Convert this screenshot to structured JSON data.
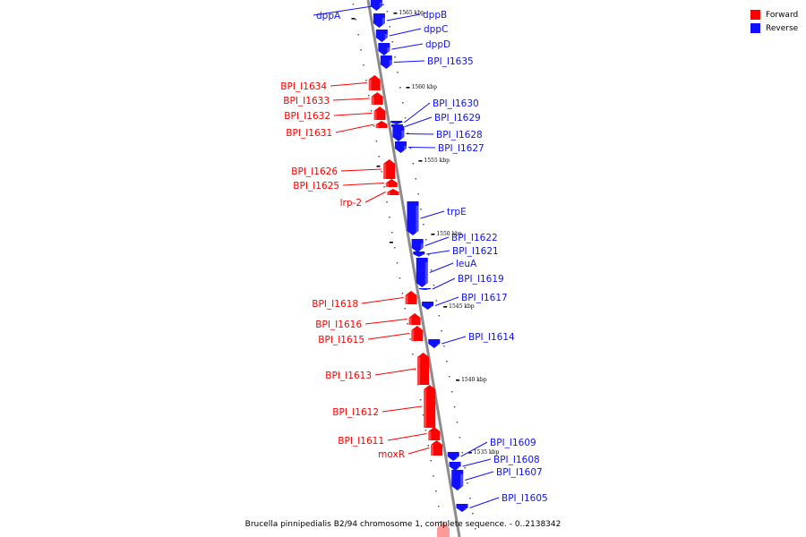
{
  "title": "Brucella pinnipedialis B2/94 chromosome 1, complete sequence. - 0..2138342",
  "legend": [
    {
      "label": "Forward",
      "color": "#ff0000"
    },
    {
      "label": "Reverse",
      "color": "#1010ff"
    }
  ],
  "colors": {
    "forward": "#ff0000",
    "reverse": "#1010ff",
    "backbone": "#8c8c8c",
    "faded_forward": "#ff9a9a"
  },
  "ticks": [
    {
      "label": "1565 kbp"
    },
    {
      "label": "1560 kbp"
    },
    {
      "label": "1555 kbp"
    },
    {
      "label": "1550 kbp"
    },
    {
      "label": "1545 kbp"
    },
    {
      "label": "1540 kbp"
    },
    {
      "label": "1535 kbp"
    }
  ],
  "genes": [
    {
      "name": "dppA",
      "strand": "reverse"
    },
    {
      "name": "dppB",
      "strand": "reverse"
    },
    {
      "name": "dppC",
      "strand": "reverse"
    },
    {
      "name": "dppD",
      "strand": "reverse"
    },
    {
      "name": "BPI_I1635",
      "strand": "reverse"
    },
    {
      "name": "BPI_I1634",
      "strand": "forward"
    },
    {
      "name": "BPI_I1633",
      "strand": "forward"
    },
    {
      "name": "BPI_I1632",
      "strand": "forward"
    },
    {
      "name": "BPI_I1631",
      "strand": "forward"
    },
    {
      "name": "BPI_I1630",
      "strand": "reverse"
    },
    {
      "name": "BPI_I1629",
      "strand": "reverse"
    },
    {
      "name": "BPI_I1628",
      "strand": "reverse"
    },
    {
      "name": "BPI_I1627",
      "strand": "reverse"
    },
    {
      "name": "BPI_I1626",
      "strand": "forward"
    },
    {
      "name": "BPI_I1625",
      "strand": "forward"
    },
    {
      "name": "lrp-2",
      "strand": "forward"
    },
    {
      "name": "trpE",
      "strand": "reverse"
    },
    {
      "name": "BPI_I1622",
      "strand": "reverse"
    },
    {
      "name": "BPI_I1621",
      "strand": "reverse"
    },
    {
      "name": "leuA",
      "strand": "reverse"
    },
    {
      "name": "BPI_I1619",
      "strand": "reverse"
    },
    {
      "name": "BPI_I1618",
      "strand": "forward"
    },
    {
      "name": "BPI_I1617",
      "strand": "reverse"
    },
    {
      "name": "BPI_I1616",
      "strand": "forward"
    },
    {
      "name": "BPI_I1615",
      "strand": "forward"
    },
    {
      "name": "BPI_I1614",
      "strand": "reverse"
    },
    {
      "name": "BPI_I1613",
      "strand": "forward"
    },
    {
      "name": "BPI_I1612",
      "strand": "forward"
    },
    {
      "name": "BPI_I1611",
      "strand": "forward"
    },
    {
      "name": "moxR",
      "strand": "forward"
    },
    {
      "name": "BPI_I1609",
      "strand": "reverse"
    },
    {
      "name": "BPI_I1608",
      "strand": "reverse"
    },
    {
      "name": "BPI_I1607",
      "strand": "reverse"
    },
    {
      "name": "BPI_I1605",
      "strand": "reverse"
    }
  ]
}
